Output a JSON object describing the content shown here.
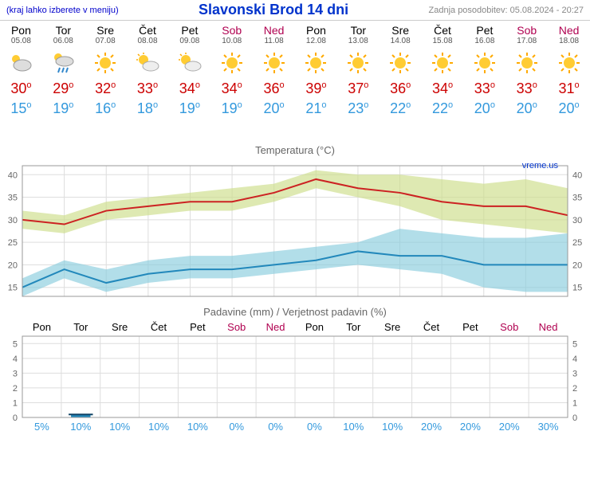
{
  "header": {
    "menu_hint": "(kraj lahko izberete v meniju)",
    "title": "Slavonski Brod 14 dni",
    "updated": "Zadnja posodobitev: 05.08.2024 - 20:27"
  },
  "days": [
    {
      "name": "Pon",
      "date": "05.08",
      "weekend": false,
      "icon": "cloud",
      "high": 30,
      "low": 15,
      "precip_prob": 5,
      "precip_mm": 0
    },
    {
      "name": "Tor",
      "date": "06.08",
      "weekend": false,
      "icon": "rain",
      "high": 29,
      "low": 19,
      "precip_prob": 10,
      "precip_mm": 0.2
    },
    {
      "name": "Sre",
      "date": "07.08",
      "weekend": false,
      "icon": "sun",
      "high": 32,
      "low": 16,
      "precip_prob": 10,
      "precip_mm": 0
    },
    {
      "name": "Čet",
      "date": "08.08",
      "weekend": false,
      "icon": "partly",
      "high": 33,
      "low": 18,
      "precip_prob": 10,
      "precip_mm": 0
    },
    {
      "name": "Pet",
      "date": "09.08",
      "weekend": false,
      "icon": "partly",
      "high": 34,
      "low": 19,
      "precip_prob": 10,
      "precip_mm": 0
    },
    {
      "name": "Sob",
      "date": "10.08",
      "weekend": true,
      "icon": "sun",
      "high": 34,
      "low": 19,
      "precip_prob": 0,
      "precip_mm": 0
    },
    {
      "name": "Ned",
      "date": "11.08",
      "weekend": true,
      "icon": "sun",
      "high": 36,
      "low": 20,
      "precip_prob": 0,
      "precip_mm": 0
    },
    {
      "name": "Pon",
      "date": "12.08",
      "weekend": false,
      "icon": "sun",
      "high": 39,
      "low": 21,
      "precip_prob": 0,
      "precip_mm": 0
    },
    {
      "name": "Tor",
      "date": "13.08",
      "weekend": false,
      "icon": "sun",
      "high": 37,
      "low": 23,
      "precip_prob": 10,
      "precip_mm": 0
    },
    {
      "name": "Sre",
      "date": "14.08",
      "weekend": false,
      "icon": "sun",
      "high": 36,
      "low": 22,
      "precip_prob": 10,
      "precip_mm": 0
    },
    {
      "name": "Čet",
      "date": "15.08",
      "weekend": false,
      "icon": "sun",
      "high": 34,
      "low": 22,
      "precip_prob": 20,
      "precip_mm": 0
    },
    {
      "name": "Pet",
      "date": "16.08",
      "weekend": false,
      "icon": "sun",
      "high": 33,
      "low": 20,
      "precip_prob": 20,
      "precip_mm": 0
    },
    {
      "name": "Sob",
      "date": "17.08",
      "weekend": true,
      "icon": "sun",
      "high": 33,
      "low": 20,
      "precip_prob": 20,
      "precip_mm": 0
    },
    {
      "name": "Ned",
      "date": "18.08",
      "weekend": true,
      "icon": "sun",
      "high": 31,
      "low": 20,
      "precip_prob": 30,
      "precip_mm": 0
    }
  ],
  "temp_chart": {
    "title": "Temperatura (°C)",
    "watermark": "vreme.us",
    "ylim": [
      13,
      42
    ],
    "yticks": [
      15,
      20,
      25,
      30,
      35,
      40
    ],
    "high_line_color": "#cc2222",
    "low_line_color": "#2288bb",
    "high_band_color": "#ccdd88",
    "low_band_color": "#88ccdd",
    "grid_color": "#dddddd",
    "line_width": 2,
    "high_band": [
      [
        28,
        32
      ],
      [
        27,
        31
      ],
      [
        30,
        34
      ],
      [
        31,
        35
      ],
      [
        32,
        36
      ],
      [
        32,
        37
      ],
      [
        34,
        38
      ],
      [
        37,
        41
      ],
      [
        35,
        40
      ],
      [
        33,
        40
      ],
      [
        30,
        39
      ],
      [
        29,
        38
      ],
      [
        28,
        39
      ],
      [
        27,
        37
      ]
    ],
    "low_band": [
      [
        13,
        17
      ],
      [
        17,
        21
      ],
      [
        14,
        19
      ],
      [
        16,
        21
      ],
      [
        17,
        22
      ],
      [
        17,
        22
      ],
      [
        18,
        23
      ],
      [
        19,
        24
      ],
      [
        20,
        25
      ],
      [
        19,
        28
      ],
      [
        18,
        27
      ],
      [
        15,
        26
      ],
      [
        14,
        26
      ],
      [
        14,
        27
      ]
    ]
  },
  "precip_chart": {
    "title": "Padavine (mm) / Verjetnost padavin (%)",
    "ylim": [
      0,
      5.5
    ],
    "yticks": [
      0,
      1,
      2,
      3,
      4,
      5
    ],
    "bar_color": "#2288bb",
    "grid_color": "#dddddd"
  }
}
